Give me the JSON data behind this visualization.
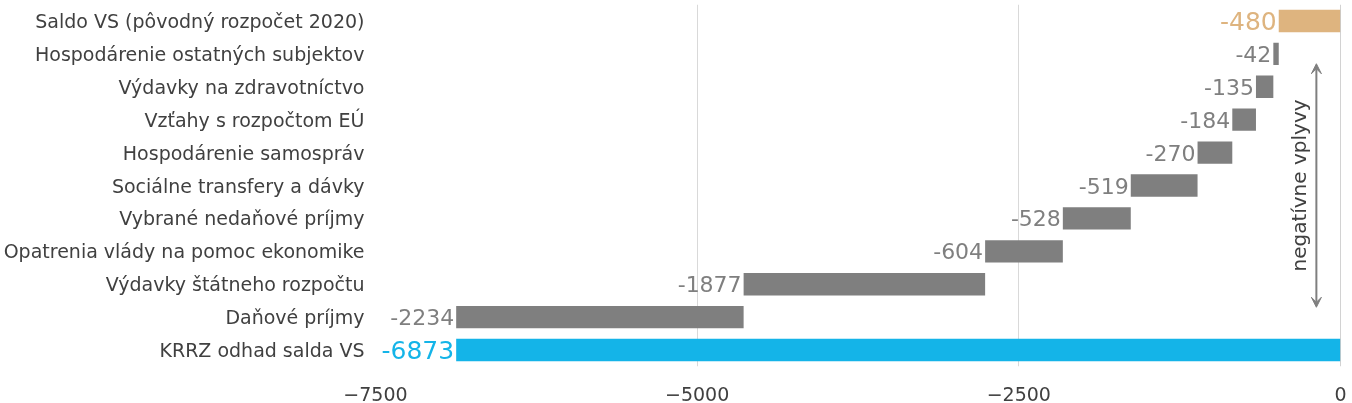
{
  "chart_data": {
    "type": "bar",
    "orientation": "horizontal",
    "categories": [
      "Saldo VS (pôvodný rozpočet 2020)",
      "Hospodárenie ostatných subjektov",
      "Výdavky na zdravotníctvo",
      "Vzťahy s rozpočtom EÚ",
      "Hospodárenie samospráv",
      "Sociálne transfery a dávky",
      "Vybrané nedaňové príjmy",
      "Opatrenia vlády na pomoc ekonomike",
      "Výdavky štátneho rozpočtu",
      "Daňové príjmy",
      "KRRZ odhad salda VS"
    ],
    "values": [
      -480,
      -42,
      -135,
      -184,
      -270,
      -519,
      -528,
      -604,
      -1877,
      -2234,
      -6873
    ],
    "base": [
      0,
      -480,
      -522,
      -657,
      -841,
      -1111,
      -1630,
      -2158,
      -2762,
      -4639,
      0
    ],
    "colors": [
      "#deb47f",
      "#7f7f7f",
      "#7f7f7f",
      "#7f7f7f",
      "#7f7f7f",
      "#7f7f7f",
      "#7f7f7f",
      "#7f7f7f",
      "#7f7f7f",
      "#7f7f7f",
      "#14b4e8"
    ],
    "data_labels": true,
    "xlim": [
      -7500,
      0
    ],
    "xticks": [
      -7500,
      -5000,
      -2500,
      0
    ],
    "grid": "x",
    "annotations": [
      "negatívne vplyvy"
    ]
  }
}
